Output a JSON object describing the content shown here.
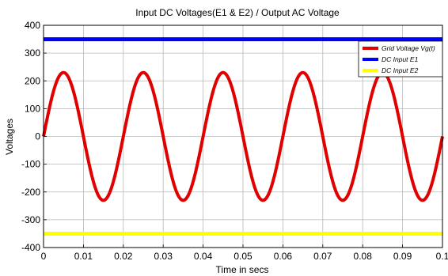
{
  "chart_data": {
    "type": "line",
    "title": "Input DC Voltages(E1 & E2) / Output AC Voltage",
    "xlabel": "Time in secs",
    "ylabel": "Voltages",
    "xlim": [
      0,
      0.1
    ],
    "ylim": [
      -400,
      400
    ],
    "xticks": [
      "0",
      "0.01",
      "0.02",
      "0.03",
      "0.04",
      "0.05",
      "0.06",
      "0.07",
      "0.08",
      "0.09",
      "0.1"
    ],
    "yticks": [
      "400",
      "300",
      "200",
      "100",
      "0",
      "-100",
      "-200",
      "-300",
      "-400"
    ],
    "grid": true,
    "legend_position": "top-right",
    "series": [
      {
        "name": "Grid Voltage Vg(t)",
        "color": "#e00000",
        "kind": "sine",
        "amplitude": 230,
        "frequency_hz": 50,
        "x_range": [
          0,
          0.1
        ]
      },
      {
        "name": "DC Input E1",
        "color": "#0000ff",
        "kind": "constant",
        "value": 350,
        "x_range": [
          0,
          0.1
        ]
      },
      {
        "name": "DC Input E2",
        "color": "#ffff00",
        "kind": "constant",
        "value": -350,
        "x_range": [
          0,
          0.1
        ]
      }
    ]
  }
}
